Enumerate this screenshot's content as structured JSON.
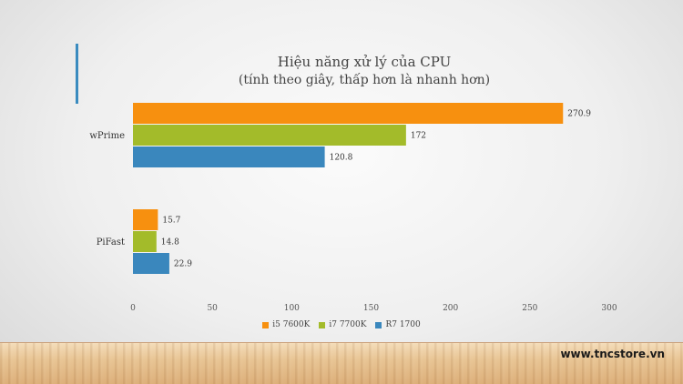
{
  "chart_data": {
    "type": "bar",
    "orientation": "horizontal",
    "title": "Hiệu năng xử lý của CPU",
    "subtitle": "(tính theo giây, thấp hơn là nhanh hơn)",
    "categories": [
      "wPrime",
      "PiFast"
    ],
    "series": [
      {
        "name": "i5 7600K",
        "color": "#f7900f",
        "values": [
          270.9,
          15.7
        ]
      },
      {
        "name": "i7 7700K",
        "color": "#a3bb2a",
        "values": [
          172,
          14.8
        ]
      },
      {
        "name": "R7 1700",
        "color": "#3a87bd",
        "values": [
          120.8,
          22.9
        ]
      }
    ],
    "xlim": [
      0,
      300
    ],
    "xticks": [
      0,
      50,
      100,
      150,
      200,
      250,
      300
    ],
    "grid": false,
    "legend_position": "bottom"
  },
  "watermark": "www.tncstore.vn"
}
